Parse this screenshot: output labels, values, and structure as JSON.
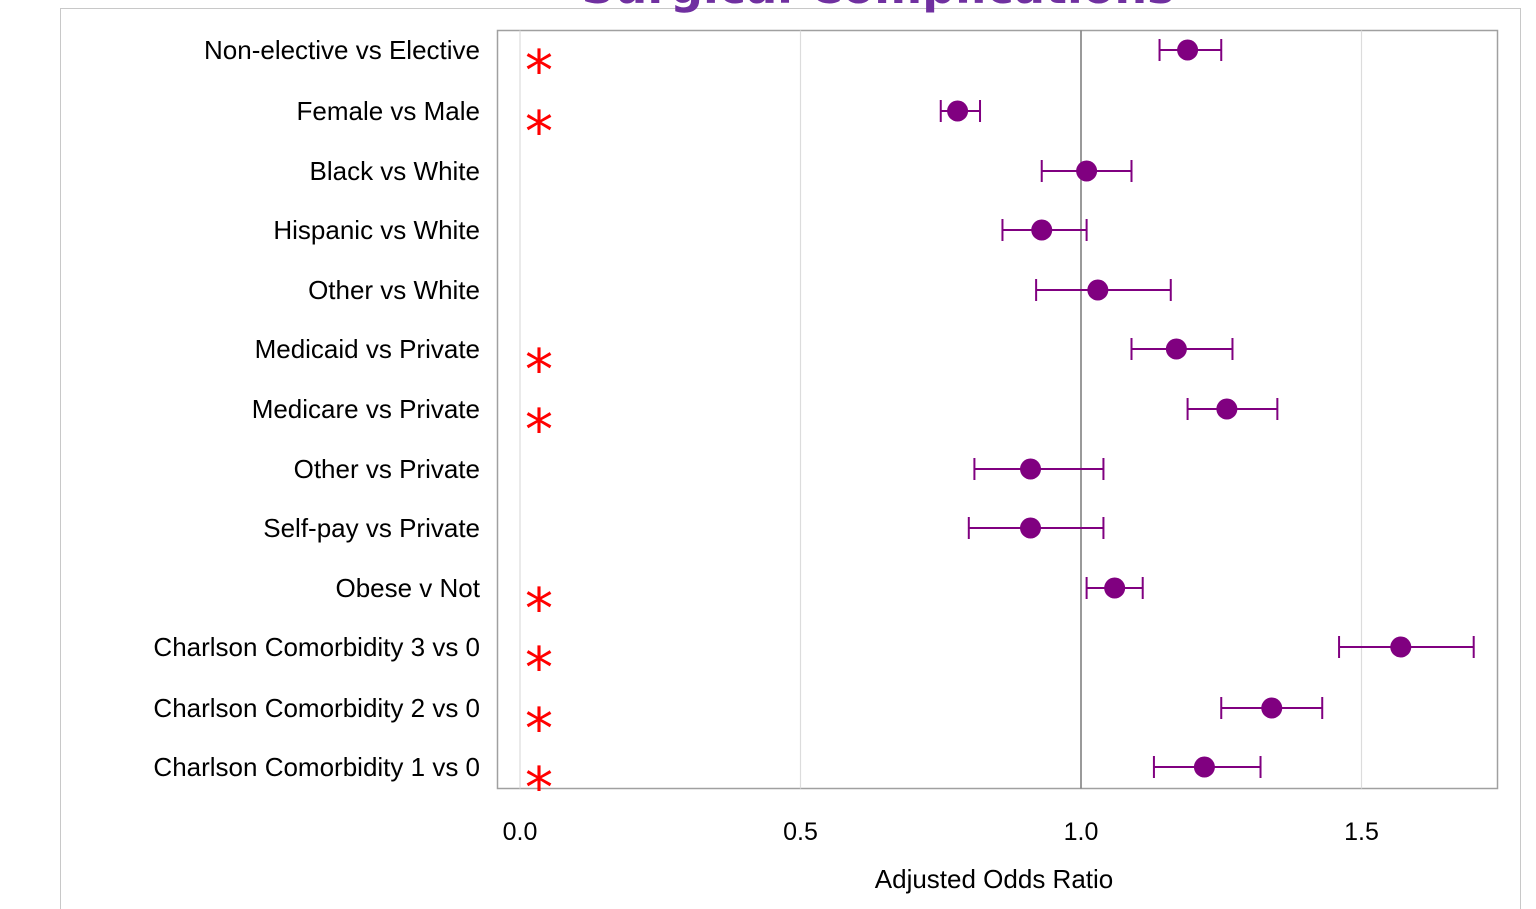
{
  "chart_data": {
    "type": "forest",
    "title": "Surgical Complications",
    "xlabel": "Adjusted Odds Ratio",
    "xlim": [
      -0.04,
      1.74
    ],
    "xticks": [
      0.0,
      0.5,
      1.0,
      1.5
    ],
    "xtick_labels": [
      "0.0",
      "0.5",
      "1.0",
      "1.5"
    ],
    "reference_line": 1.0,
    "grid": "vertical",
    "significance_marker": "*",
    "rows": [
      {
        "label": "Non-elective vs Elective",
        "or": 1.19,
        "lo": 1.14,
        "hi": 1.25,
        "significant": true
      },
      {
        "label": "Female vs Male",
        "or": 0.78,
        "lo": 0.75,
        "hi": 0.82,
        "significant": true
      },
      {
        "label": "Black vs White",
        "or": 1.01,
        "lo": 0.93,
        "hi": 1.09,
        "significant": false
      },
      {
        "label": "Hispanic vs White",
        "or": 0.93,
        "lo": 0.86,
        "hi": 1.01,
        "significant": false
      },
      {
        "label": "Other vs White",
        "or": 1.03,
        "lo": 0.92,
        "hi": 1.16,
        "significant": false
      },
      {
        "label": "Medicaid vs Private",
        "or": 1.17,
        "lo": 1.09,
        "hi": 1.27,
        "significant": true
      },
      {
        "label": "Medicare vs Private",
        "or": 1.26,
        "lo": 1.19,
        "hi": 1.35,
        "significant": true
      },
      {
        "label": "Other vs Private",
        "or": 0.91,
        "lo": 0.81,
        "hi": 1.04,
        "significant": false
      },
      {
        "label": "Self-pay vs Private",
        "or": 0.91,
        "lo": 0.8,
        "hi": 1.04,
        "significant": false
      },
      {
        "label": "Obese v Not",
        "or": 1.06,
        "lo": 1.01,
        "hi": 1.11,
        "significant": true
      },
      {
        "label": "Charlson Comorbidity 3 vs 0",
        "or": 1.57,
        "lo": 1.46,
        "hi": 1.7,
        "significant": true
      },
      {
        "label": "Charlson Comorbidity 2 vs 0",
        "or": 1.34,
        "lo": 1.25,
        "hi": 1.43,
        "significant": true
      },
      {
        "label": "Charlson Comorbidity 1 vs 0",
        "or": 1.22,
        "lo": 1.13,
        "hi": 1.32,
        "significant": true
      }
    ],
    "colors": {
      "title": "#7030a0",
      "marker": "#800080",
      "significance": "#ff0000",
      "reference_line": "#808080",
      "grid": "#dcdcdc",
      "frame": "#a0a0a0",
      "text": "#000000"
    }
  }
}
